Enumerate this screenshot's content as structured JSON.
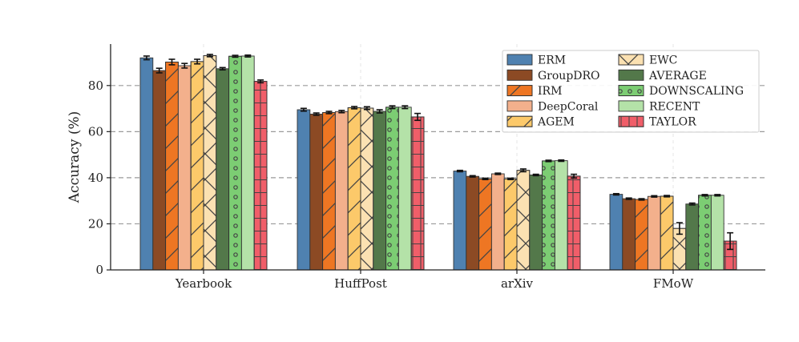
{
  "chart_data": {
    "type": "bar",
    "title": "",
    "xlabel": "",
    "ylabel": "Accuracy (%)",
    "ylim": [
      0,
      98
    ],
    "yticks": [
      0,
      20,
      40,
      60,
      80
    ],
    "ytick_labels": [
      "0",
      "20",
      "40",
      "60",
      "80"
    ],
    "grid": "horizontal dashed",
    "legend_position": "top-right",
    "legend_columns": 2,
    "categories": [
      "Yearbook",
      "HuffPost",
      "arXiv",
      "FMoW"
    ],
    "series": [
      {
        "name": "ERM",
        "color": "#4f81b0",
        "hatch": "none",
        "values": [
          92.0,
          69.5,
          42.9,
          32.8
        ],
        "errors": [
          0.8,
          0.6,
          0.3,
          0.3
        ]
      },
      {
        "name": "GroupDRO",
        "color": "#8c4a24",
        "hatch": "none",
        "values": [
          86.5,
          67.6,
          40.6,
          30.9
        ],
        "errors": [
          1.0,
          0.5,
          0.3,
          0.3
        ]
      },
      {
        "name": "IRM",
        "color": "#ee7623",
        "hatch": "slash",
        "values": [
          90.2,
          68.3,
          39.5,
          30.6
        ],
        "errors": [
          1.2,
          0.5,
          0.3,
          0.3
        ]
      },
      {
        "name": "DeepCoral",
        "color": "#f3b08c",
        "hatch": "none",
        "values": [
          88.6,
          68.7,
          41.7,
          31.9
        ],
        "errors": [
          1.0,
          0.5,
          0.3,
          0.3
        ]
      },
      {
        "name": "AGEM",
        "color": "#fcc96a",
        "hatch": "slash",
        "values": [
          90.4,
          70.4,
          39.5,
          32.0
        ],
        "errors": [
          1.0,
          0.5,
          0.3,
          0.3
        ]
      },
      {
        "name": "EWC",
        "color": "#fbe1b2",
        "hatch": "cross",
        "values": [
          93.0,
          70.2,
          43.2,
          18.0
        ],
        "errors": [
          0.5,
          0.6,
          0.6,
          2.5
        ]
      },
      {
        "name": "AVERAGE",
        "color": "#53784a",
        "hatch": "none",
        "values": [
          87.3,
          68.8,
          41.2,
          28.6
        ],
        "errors": [
          0.5,
          0.7,
          0.3,
          0.4
        ]
      },
      {
        "name": "DOWNSCALING",
        "color": "#7ccd73",
        "hatch": "dots",
        "values": [
          92.7,
          70.6,
          47.3,
          32.4
        ],
        "errors": [
          0.4,
          0.6,
          0.3,
          0.3
        ]
      },
      {
        "name": "RECENT",
        "color": "#b4e2a8",
        "hatch": "none",
        "values": [
          92.8,
          70.6,
          47.4,
          32.4
        ],
        "errors": [
          0.4,
          0.6,
          0.3,
          0.3
        ]
      },
      {
        "name": "TAYLOR",
        "color": "#f05e69",
        "hatch": "grid",
        "values": [
          81.8,
          66.4,
          40.7,
          12.5
        ],
        "errors": [
          0.6,
          1.5,
          0.8,
          3.6
        ]
      }
    ]
  }
}
